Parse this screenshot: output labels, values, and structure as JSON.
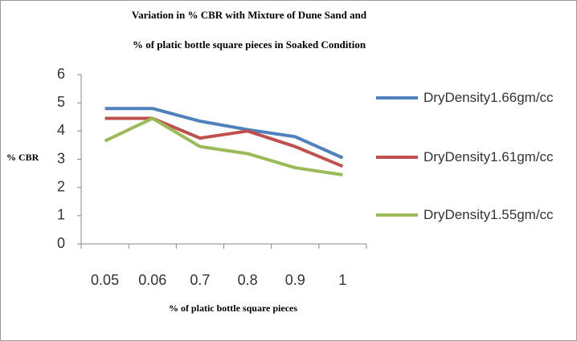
{
  "chart_data": {
    "type": "line",
    "title": [
      "Variation in % CBR with Mixture of Dune Sand and",
      "% of platic bottle square pieces in Soaked Condition"
    ],
    "xlabel": "% of platic bottle square pieces",
    "ylabel": "% CBR",
    "categories": [
      "0.05",
      "0.06",
      "0.7",
      "0.8",
      "0.9",
      "1"
    ],
    "series": [
      {
        "name": "DryDensity1.66gm/cc",
        "color": "#4f81bd",
        "values": [
          4.8,
          4.8,
          4.35,
          4.05,
          3.8,
          3.05
        ]
      },
      {
        "name": "DryDensity1.61gm/cc",
        "color": "#c0504d",
        "values": [
          4.45,
          4.45,
          3.75,
          4.0,
          3.45,
          2.75
        ]
      },
      {
        "name": "DryDensity1.55gm/cc",
        "color": "#9bbb59",
        "values": [
          3.65,
          4.45,
          3.45,
          3.2,
          2.7,
          2.45
        ]
      }
    ],
    "ylim": [
      0,
      6
    ],
    "yticks": [
      0,
      1,
      2,
      3,
      4,
      5,
      6
    ],
    "grid": false,
    "legend": "right"
  }
}
